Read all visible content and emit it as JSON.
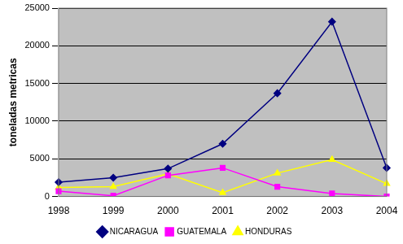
{
  "chart_data": {
    "type": "line",
    "y_label": "toneladas metricas",
    "categories": [
      "1998",
      "1999",
      "2000",
      "2001",
      "2002",
      "2003",
      "2004"
    ],
    "series": [
      {
        "name": "NICARAGUA",
        "color": "#000080",
        "marker": "diamond",
        "values": [
          1900,
          2500,
          3700,
          7000,
          13700,
          23200,
          3800
        ]
      },
      {
        "name": "GUATEMALA",
        "color": "#ff00ff",
        "marker": "square",
        "values": [
          700,
          100,
          2800,
          3800,
          1300,
          400,
          0
        ]
      },
      {
        "name": "HONDURAS",
        "color": "#ffff00",
        "marker": "triangle",
        "values": [
          1200,
          1300,
          3000,
          500,
          3100,
          4900,
          1700
        ]
      }
    ],
    "ylim": [
      0,
      25000
    ],
    "yticks": [
      0,
      5000,
      10000,
      15000,
      20000,
      25000
    ],
    "grid": true,
    "legend": "bottom"
  }
}
